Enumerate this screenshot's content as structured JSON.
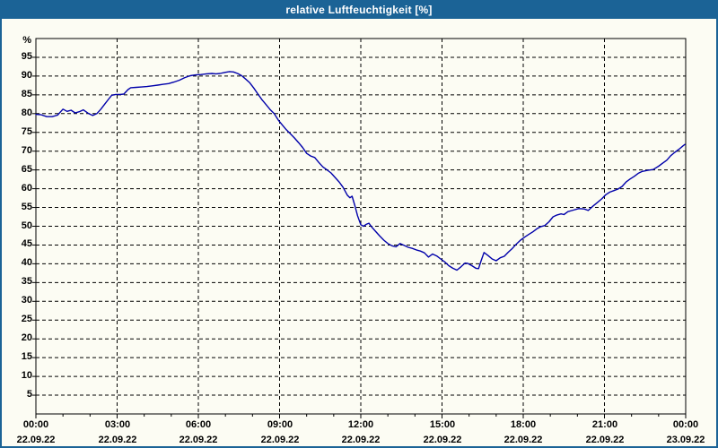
{
  "window": {
    "title": "relative Luftfeuchtigkeit [%]"
  },
  "colors": {
    "accent_blue": "#1b6396",
    "title_text": "#ffffff",
    "line_color": "#0000aa",
    "grid_color": "#000000",
    "background": "#fcfcf3",
    "label_color": "#000000"
  },
  "chart_data": {
    "type": "line",
    "title": "relative Luftfeuchtigkeit [%]",
    "ylabel_unit": "%",
    "ylim": [
      0,
      100
    ],
    "yticks": [
      5,
      10,
      15,
      20,
      25,
      30,
      35,
      40,
      45,
      50,
      55,
      60,
      65,
      70,
      75,
      80,
      85,
      90,
      95
    ],
    "xlim_hours": [
      0,
      24
    ],
    "minor_xtick_every_hours": 1,
    "grid": "dashed",
    "legend": "none",
    "xticks": [
      {
        "hour": 0,
        "time": "00:00",
        "date": "22.09.22"
      },
      {
        "hour": 3,
        "time": "03:00",
        "date": "22.09.22"
      },
      {
        "hour": 6,
        "time": "06:00",
        "date": "22.09.22"
      },
      {
        "hour": 9,
        "time": "09:00",
        "date": "22.09.22"
      },
      {
        "hour": 12,
        "time": "12:00",
        "date": "22.09.22"
      },
      {
        "hour": 15,
        "time": "15:00",
        "date": "22.09.22"
      },
      {
        "hour": 18,
        "time": "18:00",
        "date": "22.09.22"
      },
      {
        "hour": 21,
        "time": "21:00",
        "date": "22.09.22"
      },
      {
        "hour": 24,
        "time": "00:00",
        "date": "23.09.22"
      }
    ],
    "series": [
      {
        "name": "relative Luftfeuchtigkeit",
        "points": [
          [
            0.0,
            79.8
          ],
          [
            0.2,
            79.7
          ],
          [
            0.4,
            79.2
          ],
          [
            0.6,
            79.2
          ],
          [
            0.8,
            79.6
          ],
          [
            1.0,
            81.2
          ],
          [
            1.15,
            80.6
          ],
          [
            1.3,
            80.9
          ],
          [
            1.45,
            80.2
          ],
          [
            1.6,
            80.5
          ],
          [
            1.75,
            81.0
          ],
          [
            1.95,
            80.0
          ],
          [
            2.1,
            79.5
          ],
          [
            2.25,
            80.0
          ],
          [
            2.4,
            81.2
          ],
          [
            2.55,
            82.6
          ],
          [
            2.7,
            84.0
          ],
          [
            2.8,
            84.9
          ],
          [
            2.95,
            85.1
          ],
          [
            3.1,
            85.1
          ],
          [
            3.25,
            85.2
          ],
          [
            3.4,
            86.4
          ],
          [
            3.5,
            86.9
          ],
          [
            3.7,
            87.0
          ],
          [
            3.9,
            87.1
          ],
          [
            4.1,
            87.2
          ],
          [
            4.3,
            87.4
          ],
          [
            4.5,
            87.6
          ],
          [
            4.7,
            87.8
          ],
          [
            4.9,
            88.0
          ],
          [
            5.1,
            88.4
          ],
          [
            5.3,
            88.9
          ],
          [
            5.5,
            89.6
          ],
          [
            5.7,
            90.1
          ],
          [
            5.9,
            90.3
          ],
          [
            6.1,
            90.4
          ],
          [
            6.3,
            90.6
          ],
          [
            6.5,
            90.7
          ],
          [
            6.65,
            90.6
          ],
          [
            6.8,
            90.7
          ],
          [
            7.0,
            91.0
          ],
          [
            7.15,
            91.2
          ],
          [
            7.3,
            91.1
          ],
          [
            7.45,
            90.7
          ],
          [
            7.6,
            90.1
          ],
          [
            7.75,
            89.2
          ],
          [
            7.9,
            88.2
          ],
          [
            8.05,
            86.8
          ],
          [
            8.2,
            85.2
          ],
          [
            8.35,
            83.7
          ],
          [
            8.5,
            82.4
          ],
          [
            8.65,
            81.1
          ],
          [
            8.8,
            80.0
          ],
          [
            8.95,
            78.3
          ],
          [
            9.1,
            77.0
          ],
          [
            9.25,
            75.7
          ],
          [
            9.4,
            74.6
          ],
          [
            9.55,
            73.5
          ],
          [
            9.7,
            72.3
          ],
          [
            9.85,
            71.0
          ],
          [
            10.0,
            69.4
          ],
          [
            10.15,
            68.7
          ],
          [
            10.3,
            68.3
          ],
          [
            10.45,
            67.0
          ],
          [
            10.6,
            65.8
          ],
          [
            10.75,
            65.0
          ],
          [
            10.9,
            64.2
          ],
          [
            11.05,
            63.0
          ],
          [
            11.2,
            61.8
          ],
          [
            11.35,
            60.3
          ],
          [
            11.5,
            58.3
          ],
          [
            11.6,
            57.6
          ],
          [
            11.68,
            58.0
          ],
          [
            11.78,
            55.5
          ],
          [
            11.88,
            52.8
          ],
          [
            12.0,
            50.4
          ],
          [
            12.1,
            50.0
          ],
          [
            12.2,
            50.5
          ],
          [
            12.3,
            50.8
          ],
          [
            12.4,
            49.8
          ],
          [
            12.55,
            48.6
          ],
          [
            12.7,
            47.4
          ],
          [
            12.85,
            46.3
          ],
          [
            13.0,
            45.4
          ],
          [
            13.15,
            44.8
          ],
          [
            13.3,
            44.5
          ],
          [
            13.45,
            45.4
          ],
          [
            13.6,
            44.9
          ],
          [
            13.75,
            44.4
          ],
          [
            13.9,
            44.1
          ],
          [
            14.05,
            43.7
          ],
          [
            14.2,
            43.4
          ],
          [
            14.35,
            42.9
          ],
          [
            14.5,
            41.8
          ],
          [
            14.65,
            42.6
          ],
          [
            14.8,
            42.1
          ],
          [
            14.95,
            41.3
          ],
          [
            15.1,
            40.5
          ],
          [
            15.25,
            39.5
          ],
          [
            15.4,
            38.8
          ],
          [
            15.55,
            38.3
          ],
          [
            15.7,
            39.2
          ],
          [
            15.85,
            40.2
          ],
          [
            15.95,
            40.1
          ],
          [
            16.1,
            39.5
          ],
          [
            16.25,
            38.8
          ],
          [
            16.35,
            38.7
          ],
          [
            16.45,
            40.9
          ],
          [
            16.55,
            43.0
          ],
          [
            16.7,
            42.2
          ],
          [
            16.85,
            41.3
          ],
          [
            17.0,
            40.8
          ],
          [
            17.15,
            41.6
          ],
          [
            17.3,
            42.0
          ],
          [
            17.45,
            43.1
          ],
          [
            17.6,
            44.1
          ],
          [
            17.75,
            45.3
          ],
          [
            17.9,
            46.3
          ],
          [
            18.05,
            47.1
          ],
          [
            18.2,
            47.8
          ],
          [
            18.35,
            48.5
          ],
          [
            18.5,
            49.3
          ],
          [
            18.65,
            49.9
          ],
          [
            18.8,
            50.2
          ],
          [
            18.95,
            51.2
          ],
          [
            19.1,
            52.5
          ],
          [
            19.25,
            53.0
          ],
          [
            19.4,
            53.3
          ],
          [
            19.5,
            53.1
          ],
          [
            19.65,
            53.9
          ],
          [
            19.85,
            54.3
          ],
          [
            20.05,
            54.7
          ],
          [
            20.25,
            54.6
          ],
          [
            20.4,
            54.2
          ],
          [
            20.55,
            55.2
          ],
          [
            20.75,
            56.4
          ],
          [
            20.9,
            57.3
          ],
          [
            21.05,
            58.4
          ],
          [
            21.2,
            59.1
          ],
          [
            21.35,
            59.5
          ],
          [
            21.5,
            59.9
          ],
          [
            21.65,
            60.6
          ],
          [
            21.8,
            61.8
          ],
          [
            21.95,
            62.6
          ],
          [
            22.1,
            63.3
          ],
          [
            22.25,
            64.1
          ],
          [
            22.4,
            64.6
          ],
          [
            22.6,
            64.9
          ],
          [
            22.8,
            65.1
          ],
          [
            23.0,
            66.0
          ],
          [
            23.15,
            66.8
          ],
          [
            23.3,
            67.6
          ],
          [
            23.45,
            68.8
          ],
          [
            23.6,
            69.7
          ],
          [
            23.75,
            70.5
          ],
          [
            23.9,
            71.4
          ],
          [
            23.97,
            71.8
          ]
        ]
      }
    ]
  }
}
